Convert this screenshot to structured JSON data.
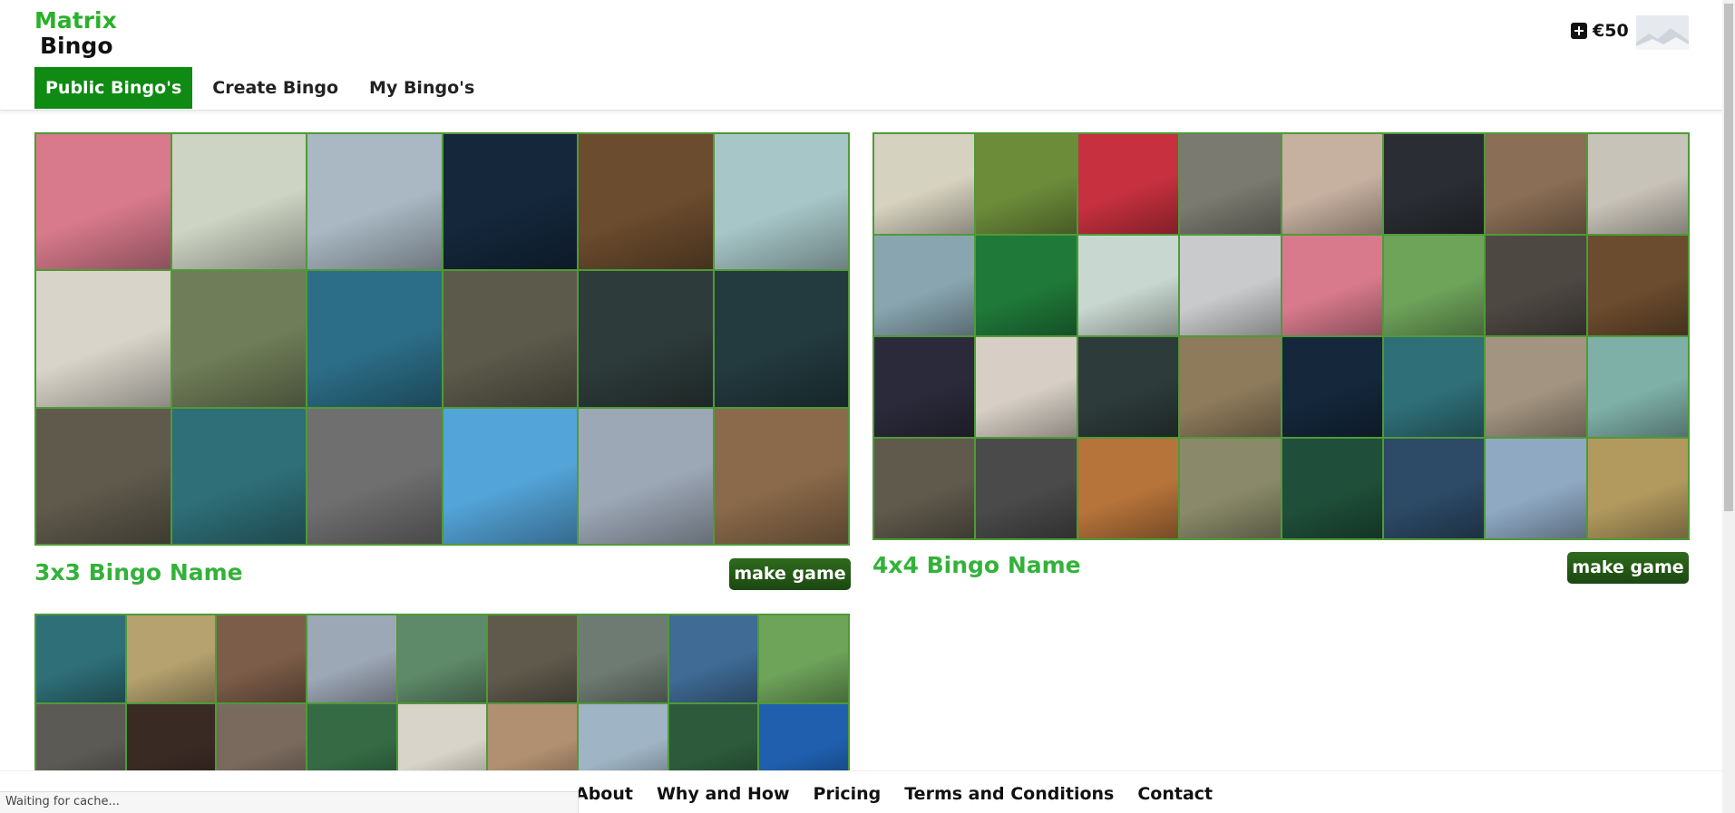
{
  "header": {
    "logo_line1": "Matrix",
    "logo_line2": "Bingo",
    "nav": [
      {
        "label": "Public Bingo's",
        "active": true
      },
      {
        "label": "Create Bingo",
        "active": false
      },
      {
        "label": "My Bingo's",
        "active": false
      }
    ],
    "credits": "€50"
  },
  "bingos": [
    {
      "name": "3x3 Bingo Name",
      "button": "make game",
      "grid": [
        [
          "#d87a8c",
          "#cdd4c3",
          "#a9b8c3",
          "#14273b",
          "#6b4c2e",
          "#a7c6c8"
        ],
        [
          "#d8d4c9",
          "#6f7d58",
          "#2c6e87",
          "#5c5a4b",
          "#2d3b3a",
          "#233a3f"
        ],
        [
          "#5f5a4c",
          "#2f6f78",
          "#6f6f6f",
          "#53a4d8",
          "#9da8b6",
          "#8a6a4a"
        ]
      ]
    },
    {
      "name": "4x4 Bingo Name",
      "button": "make game",
      "grid": [
        [
          "#d6d2c0",
          "#6d8c3a",
          "#c7303f",
          "#7b7a70",
          "#c6b0a0",
          "#2a2d33",
          "#8a6e56",
          "#c8c3b8"
        ],
        [
          "#89a6b0",
          "#1f7a3a",
          "#c8d7d0",
          "#c9cacb",
          "#d87a8c",
          "#6ea35a",
          "#4d4842",
          "#6b4c2e"
        ],
        [
          "#2b2a3a",
          "#d7cfc5",
          "#2d3b3a",
          "#8e7b5c",
          "#14273b",
          "#2f6f78",
          "#a29480",
          "#7fb0a8"
        ],
        [
          "#5f5a4c",
          "#4a4a4a",
          "#b7743a",
          "#8a8a6a",
          "#1f4f3a",
          "#2d4a66",
          "#8fa9c3",
          "#b29a5e"
        ]
      ]
    },
    {
      "grid": [
        [
          "#2f6f78",
          "#b5a26e",
          "#7c5d49",
          "#9da8b6",
          "#5f8a6a",
          "#5f5a4c",
          "#6e7b72",
          "#3f6b95",
          "#6ea35a"
        ],
        [
          "#5c5a54",
          "#3a2a24",
          "#7a6a5e",
          "#356a45",
          "#d8d4c9",
          "#b09070",
          "#9fb4c4",
          "#2c5a3a",
          "#1f5fae"
        ]
      ]
    }
  ],
  "footer": {
    "links": [
      "About",
      "Why and How",
      "Pricing",
      "Terms and Conditions",
      "Contact"
    ]
  },
  "status": "Waiting for cache..."
}
